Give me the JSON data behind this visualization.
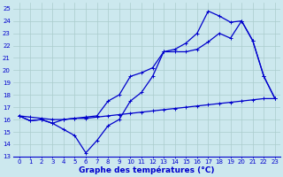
{
  "xlabel": "Graphe des températures (°C)",
  "bg_color": "#cce8ee",
  "grid_color": "#aacccc",
  "line_color": "#0000cc",
  "xlim": [
    -0.5,
    23.5
  ],
  "ylim": [
    13,
    25.5
  ],
  "xticks": [
    0,
    1,
    2,
    3,
    4,
    5,
    6,
    7,
    8,
    9,
    10,
    11,
    12,
    13,
    14,
    15,
    16,
    17,
    18,
    19,
    20,
    21,
    22,
    23
  ],
  "yticks": [
    13,
    14,
    15,
    16,
    17,
    18,
    19,
    20,
    21,
    22,
    23,
    24,
    25
  ],
  "curve1_x": [
    0,
    1,
    2,
    3,
    4,
    5,
    6,
    7,
    8,
    9,
    10,
    11,
    12,
    13,
    14,
    15,
    16,
    17,
    18,
    19,
    20,
    21,
    22,
    23
  ],
  "curve1_y": [
    16.3,
    15.9,
    16.0,
    15.7,
    15.2,
    14.7,
    13.3,
    14.3,
    15.5,
    16.0,
    17.5,
    18.2,
    19.5,
    21.5,
    21.5,
    21.5,
    21.7,
    22.3,
    23.0,
    22.6,
    24.0,
    22.4,
    19.5,
    17.7
  ],
  "curve2_x": [
    0,
    1,
    2,
    3,
    4,
    5,
    6,
    7,
    8,
    9,
    10,
    11,
    12,
    13,
    14,
    15,
    16,
    17,
    18,
    19,
    20,
    21,
    22,
    23
  ],
  "curve2_y": [
    16.3,
    15.9,
    16.0,
    15.7,
    16.0,
    16.1,
    16.2,
    16.3,
    17.5,
    18.0,
    19.5,
    19.8,
    20.2,
    21.5,
    21.7,
    22.2,
    23.0,
    24.8,
    24.4,
    23.9,
    24.0,
    22.4,
    19.5,
    17.7
  ],
  "curve3_x": [
    0,
    1,
    2,
    3,
    4,
    5,
    6,
    7,
    8,
    9,
    10,
    11,
    12,
    13,
    14,
    15,
    16,
    17,
    18,
    19,
    20,
    21,
    22,
    23
  ],
  "curve3_y": [
    16.3,
    16.2,
    16.1,
    16.0,
    16.0,
    16.1,
    16.1,
    16.2,
    16.3,
    16.4,
    16.5,
    16.6,
    16.7,
    16.8,
    16.9,
    17.0,
    17.1,
    17.2,
    17.3,
    17.4,
    17.5,
    17.6,
    17.7,
    17.7
  ],
  "marker": "+",
  "markersize": 3.5,
  "linewidth": 0.9,
  "tick_fontsize": 5.0,
  "xlabel_fontsize": 6.5,
  "xlabel_fontweight": "bold"
}
